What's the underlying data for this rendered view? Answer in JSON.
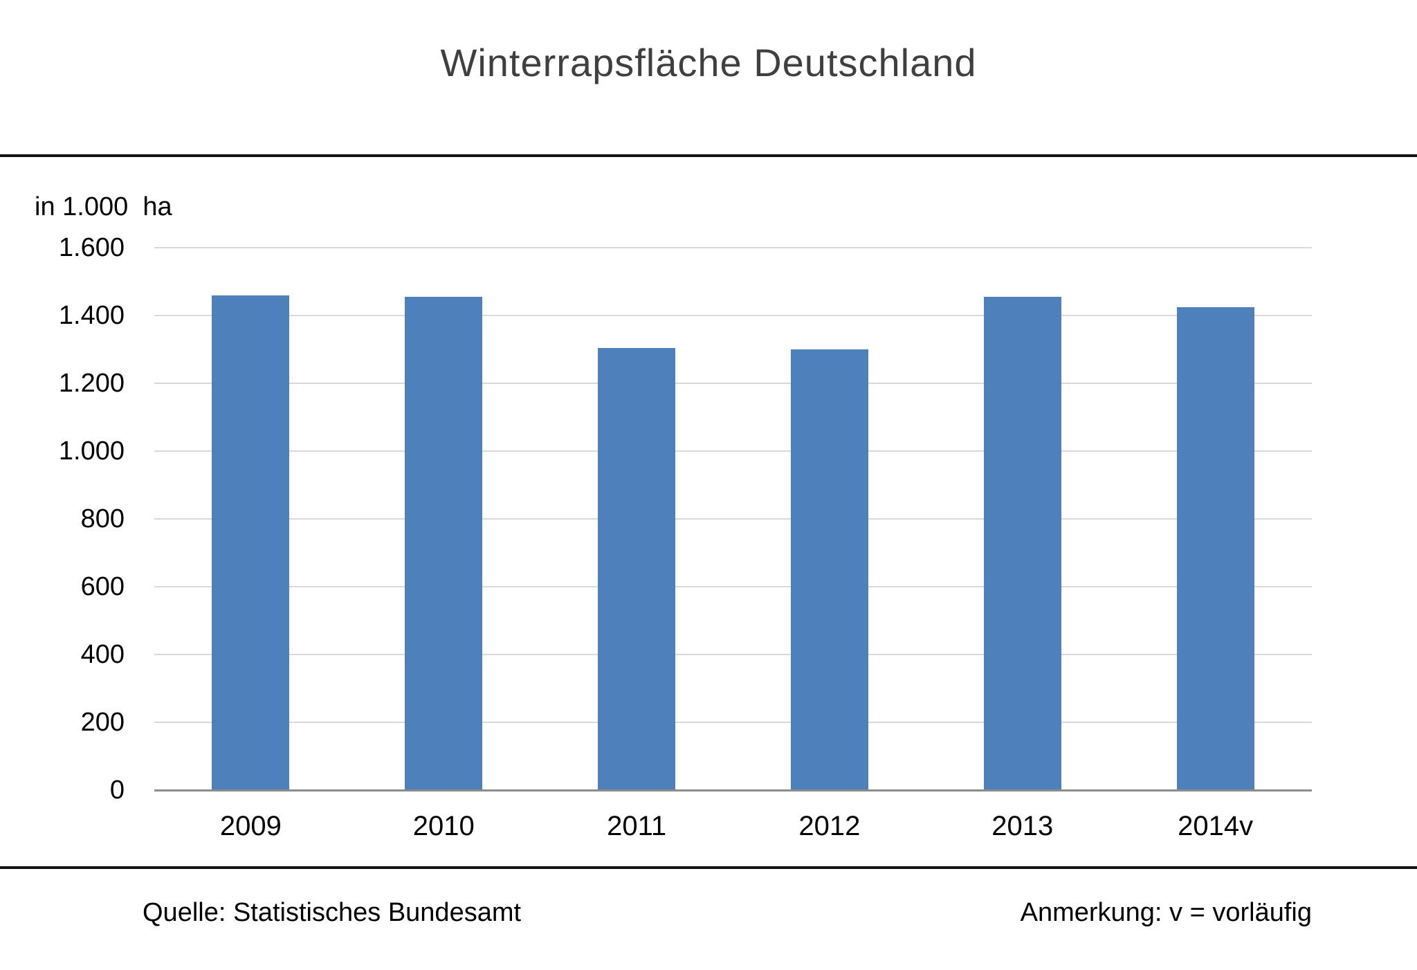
{
  "page": {
    "title": "Winterrapsfläche Deutschland",
    "unit_label": "in 1.000  ha",
    "footer": {
      "source": "Quelle: Statistisches Bundesamt",
      "note": "Anmerkung: v = vorläufig"
    }
  },
  "colors": {
    "bar": "#4E80BC",
    "gridline": "#D9D9D9",
    "axis_line": "#8C8C8C",
    "rule": "#141414",
    "title_text": "#3F3F3F",
    "text": "#000000",
    "background": "#FFFFFF"
  },
  "chart_data": {
    "type": "bar",
    "title": "Winterrapsfläche Deutschland",
    "categories": [
      "2009",
      "2010",
      "2011",
      "2012",
      "2013",
      "2014v"
    ],
    "values": [
      1460,
      1455,
      1305,
      1300,
      1455,
      1425
    ],
    "xlabel": "",
    "ylabel": "in 1.000 ha",
    "ylim": [
      0,
      1600
    ],
    "ytick_step": 200,
    "ytick_labels": [
      "0",
      "200",
      "400",
      "600",
      "800",
      "1.000",
      "1.200",
      "1.400",
      "1.600"
    ],
    "grid": true,
    "legend": false,
    "source": "Quelle: Statistisches Bundesamt",
    "note": "Anmerkung: v = vorläufig"
  }
}
